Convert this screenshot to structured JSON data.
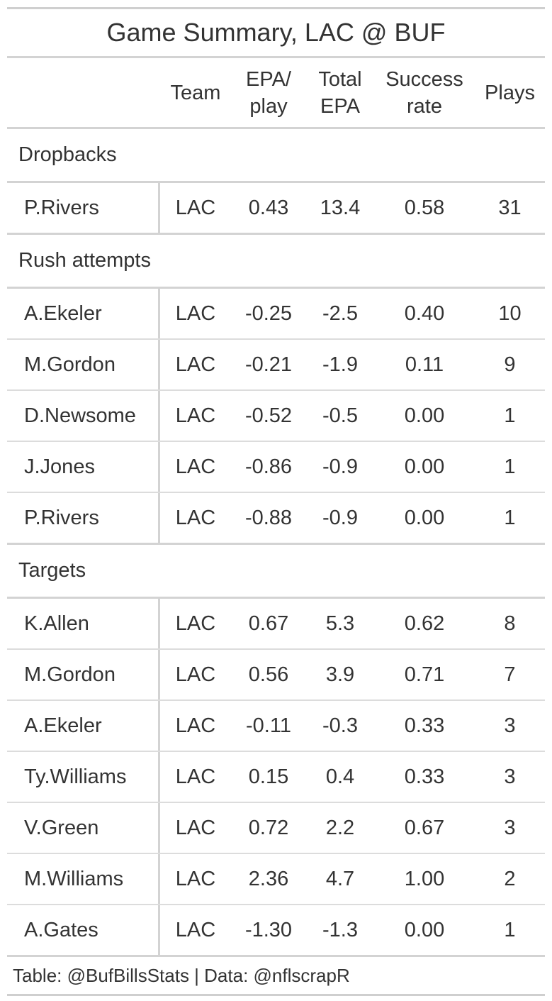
{
  "chart_data": {
    "type": "table",
    "title": "Game Summary, LAC @ BUF",
    "columns": [
      "Team",
      "EPA/ play",
      "Total EPA",
      "Success rate",
      "Plays"
    ],
    "header_lines": {
      "team": [
        "Team"
      ],
      "epa": [
        "EPA/",
        "play"
      ],
      "total": [
        "Total",
        "EPA"
      ],
      "succ": [
        "Success",
        "rate"
      ],
      "plays": [
        "Plays"
      ]
    },
    "groups": [
      {
        "label": "Dropbacks",
        "rows": [
          {
            "player": "P.Rivers",
            "team": "LAC",
            "epa_play": "0.43",
            "total_epa": "13.4",
            "success_rate": "0.58",
            "plays": "31"
          }
        ]
      },
      {
        "label": "Rush attempts",
        "rows": [
          {
            "player": "A.Ekeler",
            "team": "LAC",
            "epa_play": "-0.25",
            "total_epa": "-2.5",
            "success_rate": "0.40",
            "plays": "10"
          },
          {
            "player": "M.Gordon",
            "team": "LAC",
            "epa_play": "-0.21",
            "total_epa": "-1.9",
            "success_rate": "0.11",
            "plays": "9"
          },
          {
            "player": "D.Newsome",
            "team": "LAC",
            "epa_play": "-0.52",
            "total_epa": "-0.5",
            "success_rate": "0.00",
            "plays": "1"
          },
          {
            "player": "J.Jones",
            "team": "LAC",
            "epa_play": "-0.86",
            "total_epa": "-0.9",
            "success_rate": "0.00",
            "plays": "1"
          },
          {
            "player": "P.Rivers",
            "team": "LAC",
            "epa_play": "-0.88",
            "total_epa": "-0.9",
            "success_rate": "0.00",
            "plays": "1"
          }
        ]
      },
      {
        "label": "Targets",
        "rows": [
          {
            "player": "K.Allen",
            "team": "LAC",
            "epa_play": "0.67",
            "total_epa": "5.3",
            "success_rate": "0.62",
            "plays": "8"
          },
          {
            "player": "M.Gordon",
            "team": "LAC",
            "epa_play": "0.56",
            "total_epa": "3.9",
            "success_rate": "0.71",
            "plays": "7"
          },
          {
            "player": "A.Ekeler",
            "team": "LAC",
            "epa_play": "-0.11",
            "total_epa": "-0.3",
            "success_rate": "0.33",
            "plays": "3"
          },
          {
            "player": "Ty.Williams",
            "team": "LAC",
            "epa_play": "0.15",
            "total_epa": "0.4",
            "success_rate": "0.33",
            "plays": "3"
          },
          {
            "player": "V.Green",
            "team": "LAC",
            "epa_play": "0.72",
            "total_epa": "2.2",
            "success_rate": "0.67",
            "plays": "3"
          },
          {
            "player": "M.Williams",
            "team": "LAC",
            "epa_play": "2.36",
            "total_epa": "4.7",
            "success_rate": "1.00",
            "plays": "2"
          },
          {
            "player": "A.Gates",
            "team": "LAC",
            "epa_play": "-1.30",
            "total_epa": "-1.3",
            "success_rate": "0.00",
            "plays": "1"
          }
        ]
      }
    ],
    "source_note": "Table: @BufBillsStats | Data: @nflscrapR"
  }
}
